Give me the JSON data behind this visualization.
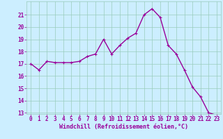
{
  "x": [
    0,
    1,
    2,
    3,
    4,
    5,
    6,
    7,
    8,
    9,
    10,
    11,
    12,
    13,
    14,
    15,
    16,
    17,
    18,
    19,
    20,
    21,
    22,
    23
  ],
  "y": [
    17.0,
    16.5,
    17.2,
    17.1,
    17.1,
    17.1,
    17.2,
    17.6,
    17.8,
    19.0,
    17.8,
    18.5,
    19.1,
    19.5,
    21.0,
    21.5,
    20.8,
    18.5,
    17.8,
    16.5,
    15.1,
    14.3,
    13.0,
    12.8
  ],
  "line_color": "#990099",
  "marker": "+",
  "marker_size": 3,
  "bg_color": "#cceeff",
  "grid_color": "#99ccbb",
  "xlabel": "Windchill (Refroidissement éolien,°C)",
  "xlabel_color": "#990099",
  "tick_color": "#990099",
  "ylim": [
    13,
    22
  ],
  "xlim": [
    -0.5,
    23.5
  ],
  "yticks": [
    13,
    14,
    15,
    16,
    17,
    18,
    19,
    20,
    21
  ],
  "xticks": [
    0,
    1,
    2,
    3,
    4,
    5,
    6,
    7,
    8,
    9,
    10,
    11,
    12,
    13,
    14,
    15,
    16,
    17,
    18,
    19,
    20,
    21,
    22,
    23
  ],
  "line_width": 1.0,
  "tick_fontsize": 5.5,
  "xlabel_fontsize": 6.0
}
